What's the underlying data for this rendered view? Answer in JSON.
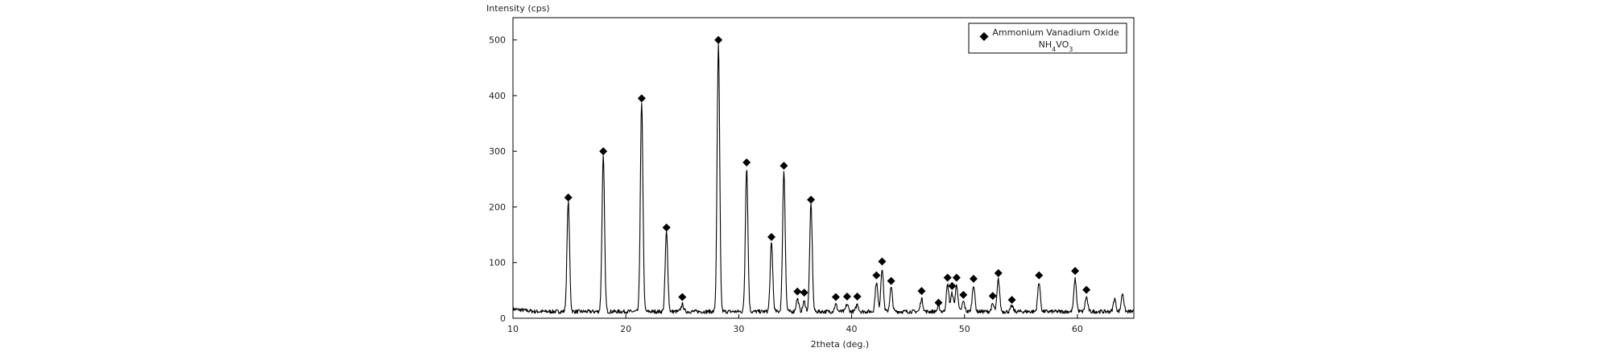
{
  "chart_data": {
    "type": "line",
    "title": "",
    "xlabel": "2theta (deg.)",
    "ylabel": "Intensity (cps)",
    "xlim": [
      10,
      65
    ],
    "ylim": [
      0,
      540
    ],
    "x_ticks": [
      "10",
      "20",
      "30",
      "40",
      "50",
      "60"
    ],
    "y_ticks": [
      "0",
      "100",
      "200",
      "300",
      "400",
      "500"
    ],
    "grid": false,
    "legend": {
      "position": "top-right",
      "entries": [
        {
          "marker": "diamond",
          "name": "Ammonium Vanadium Oxide",
          "formula": "NH4VO3"
        }
      ]
    },
    "baseline": 12,
    "peaks": [
      {
        "x": 14.9,
        "y": 210,
        "marker_y": 217
      },
      {
        "x": 18.0,
        "y": 290,
        "marker_y": 300
      },
      {
        "x": 21.4,
        "y": 385,
        "marker_y": 395
      },
      {
        "x": 23.6,
        "y": 155,
        "marker_y": 163
      },
      {
        "x": 25.0,
        "y": 25,
        "marker_y": 38
      },
      {
        "x": 28.2,
        "y": 490,
        "marker_y": 500
      },
      {
        "x": 30.7,
        "y": 270,
        "marker_y": 280
      },
      {
        "x": 32.9,
        "y": 135,
        "marker_y": 146
      },
      {
        "x": 34.0,
        "y": 265,
        "marker_y": 274
      },
      {
        "x": 35.2,
        "y": 35,
        "marker_y": 48
      },
      {
        "x": 35.8,
        "y": 30,
        "marker_y": 46
      },
      {
        "x": 36.4,
        "y": 205,
        "marker_y": 213
      },
      {
        "x": 38.6,
        "y": 25,
        "marker_y": 38
      },
      {
        "x": 39.6,
        "y": 25,
        "marker_y": 39
      },
      {
        "x": 40.5,
        "y": 25,
        "marker_y": 39
      },
      {
        "x": 42.2,
        "y": 65,
        "marker_y": 77
      },
      {
        "x": 42.7,
        "y": 90,
        "marker_y": 102
      },
      {
        "x": 43.5,
        "y": 55,
        "marker_y": 67
      },
      {
        "x": 46.2,
        "y": 35,
        "marker_y": 49
      },
      {
        "x": 47.7,
        "y": 20,
        "marker_y": 28
      },
      {
        "x": 48.5,
        "y": 60,
        "marker_y": 73
      },
      {
        "x": 48.9,
        "y": 45,
        "marker_y": 58
      },
      {
        "x": 49.3,
        "y": 60,
        "marker_y": 73
      },
      {
        "x": 49.9,
        "y": 30,
        "marker_y": 42
      },
      {
        "x": 50.8,
        "y": 60,
        "marker_y": 71
      },
      {
        "x": 52.5,
        "y": 25,
        "marker_y": 40
      },
      {
        "x": 53.0,
        "y": 70,
        "marker_y": 81
      },
      {
        "x": 54.2,
        "y": 22,
        "marker_y": 33
      },
      {
        "x": 56.6,
        "y": 65,
        "marker_y": 77
      },
      {
        "x": 59.8,
        "y": 70,
        "marker_y": 85
      },
      {
        "x": 60.8,
        "y": 38,
        "marker_y": 51
      },
      {
        "x": 63.3,
        "y": 35
      },
      {
        "x": 64.0,
        "y": 45
      }
    ]
  }
}
